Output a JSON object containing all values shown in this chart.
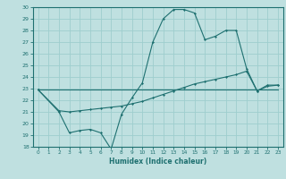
{
  "title": "",
  "xlabel": "Humidex (Indice chaleur)",
  "ylabel": "",
  "xlim": [
    -0.5,
    23.5
  ],
  "ylim": [
    18,
    30
  ],
  "xticks": [
    0,
    1,
    2,
    3,
    4,
    5,
    6,
    7,
    8,
    9,
    10,
    11,
    12,
    13,
    14,
    15,
    16,
    17,
    18,
    19,
    20,
    21,
    22,
    23
  ],
  "yticks": [
    18,
    19,
    20,
    21,
    22,
    23,
    24,
    25,
    26,
    27,
    28,
    29,
    30
  ],
  "bg_color": "#bfe0e0",
  "line_color": "#1e7070",
  "grid_color": "#9ecece",
  "line1_x": [
    0,
    1,
    2,
    3,
    4,
    5,
    6,
    7,
    8,
    9,
    10,
    11,
    12,
    13,
    14,
    15,
    16,
    17,
    18,
    19,
    20,
    21,
    22,
    23
  ],
  "line1_y": [
    22.9,
    22.9,
    22.9,
    22.9,
    22.9,
    22.9,
    22.9,
    22.9,
    22.9,
    22.9,
    22.9,
    22.9,
    22.9,
    22.9,
    22.9,
    22.9,
    22.9,
    22.9,
    22.9,
    22.9,
    22.9,
    22.9,
    22.9,
    22.9
  ],
  "line2_x": [
    0,
    2,
    3,
    4,
    5,
    6,
    7,
    8,
    9,
    10,
    11,
    12,
    13,
    14,
    15,
    16,
    17,
    18,
    19,
    20,
    21,
    22,
    23
  ],
  "line2_y": [
    22.9,
    21.0,
    19.2,
    19.4,
    19.5,
    19.2,
    17.8,
    20.8,
    22.2,
    23.5,
    27.0,
    29.0,
    29.8,
    29.8,
    29.5,
    27.2,
    27.5,
    28.0,
    28.0,
    24.7,
    22.8,
    23.3,
    23.3
  ],
  "line3_x": [
    0,
    2,
    3,
    4,
    5,
    6,
    7,
    8,
    9,
    10,
    11,
    12,
    13,
    14,
    15,
    16,
    17,
    18,
    19,
    20,
    21,
    22,
    23
  ],
  "line3_y": [
    22.9,
    21.1,
    21.0,
    21.1,
    21.2,
    21.3,
    21.4,
    21.5,
    21.7,
    21.9,
    22.2,
    22.5,
    22.8,
    23.1,
    23.4,
    23.6,
    23.8,
    24.0,
    24.2,
    24.5,
    22.8,
    23.2,
    23.3
  ]
}
